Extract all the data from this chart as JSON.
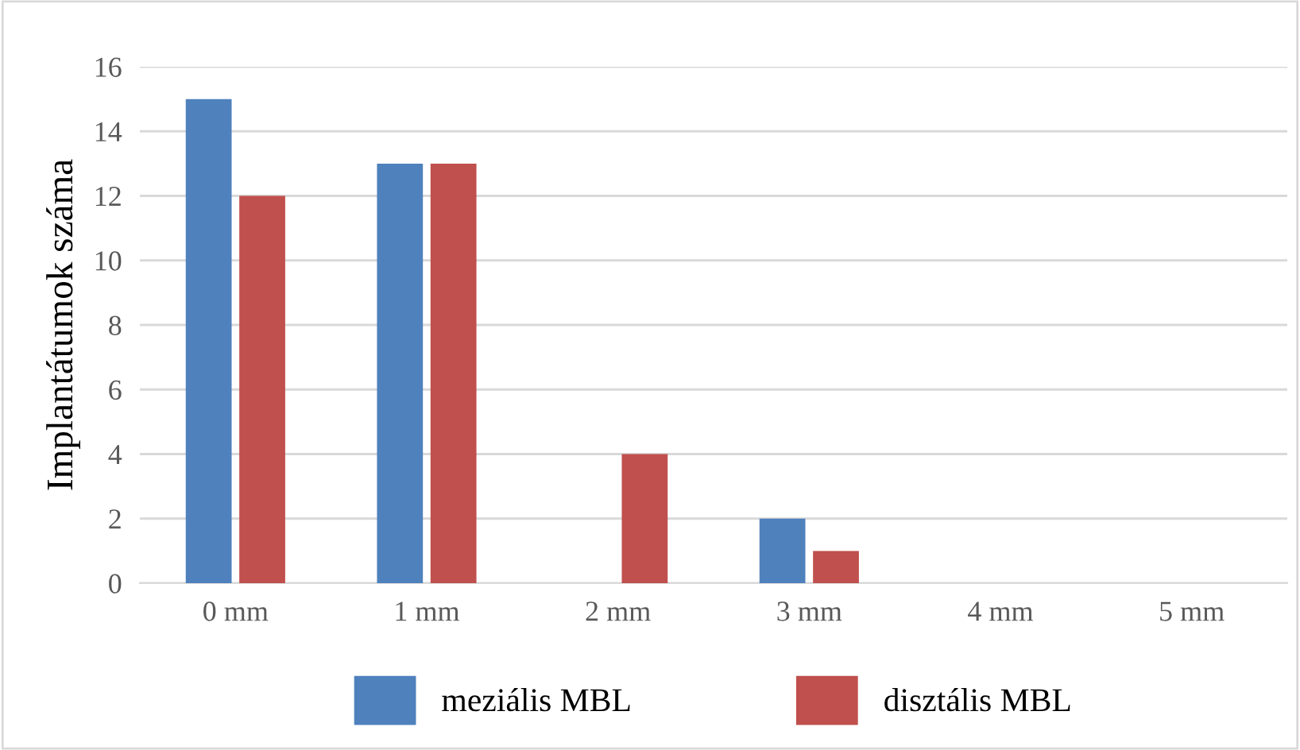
{
  "chart_data": {
    "type": "bar",
    "ylabel": "Implantátumok száma",
    "categories": [
      "0 mm",
      "1 mm",
      "2 mm",
      "3 mm",
      "4 mm",
      "5 mm"
    ],
    "series": [
      {
        "name": "meziális MBL",
        "color": "#4f81bd",
        "values": [
          15,
          13,
          0,
          2,
          0,
          0
        ]
      },
      {
        "name": "disztális MBL",
        "color": "#c0504d",
        "values": [
          12,
          13,
          4,
          1,
          0,
          0
        ]
      }
    ],
    "ylim": [
      0,
      16
    ],
    "yticks": [
      0,
      2,
      4,
      6,
      8,
      10,
      12,
      14,
      16
    ],
    "grid": "y",
    "legend": "bottom"
  }
}
